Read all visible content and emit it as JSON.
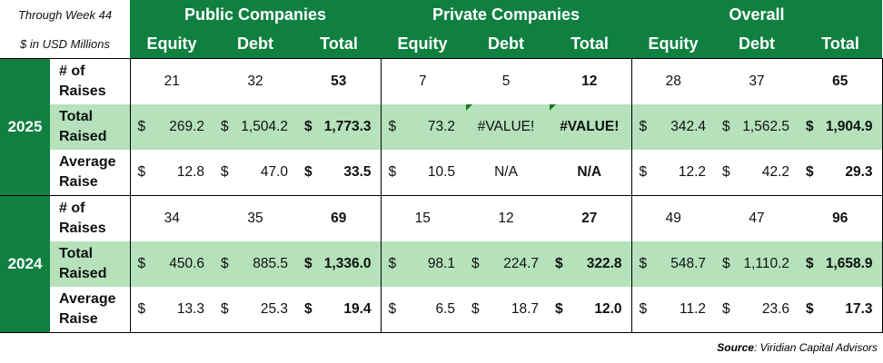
{
  "header": {
    "note1": "Through Week 44",
    "note2": "$ in USD Millions",
    "groups": [
      "Public Companies",
      "Private Companies",
      "Overall"
    ],
    "subcols": [
      "Equity",
      "Debt",
      "Total"
    ]
  },
  "row_labels": [
    [
      "# of",
      "Raises"
    ],
    [
      "Total",
      "Raised"
    ],
    [
      "Average",
      "Raise"
    ]
  ],
  "years": [
    {
      "year": "2025",
      "rows": [
        [
          "21",
          "32",
          "53",
          "7",
          "5",
          "12",
          "28",
          "37",
          "65"
        ],
        [
          "269.2",
          "1,504.2",
          "1,773.3",
          "73.2",
          "#VALUE!",
          "#VALUE!",
          "342.4",
          "1,562.5",
          "1,904.9"
        ],
        [
          "12.8",
          "47.0",
          "33.5",
          "10.5",
          "N/A",
          "N/A",
          "12.2",
          "42.2",
          "29.3"
        ]
      ]
    },
    {
      "year": "2024",
      "rows": [
        [
          "34",
          "35",
          "69",
          "15",
          "12",
          "27",
          "49",
          "47",
          "96"
        ],
        [
          "450.6",
          "885.5",
          "1,336.0",
          "98.1",
          "224.7",
          "322.8",
          "548.7",
          "1,110.2",
          "1,658.9"
        ],
        [
          "13.3",
          "25.3",
          "19.4",
          "6.5",
          "18.7",
          "12.0",
          "11.2",
          "23.6",
          "17.3"
        ]
      ]
    }
  ],
  "currency_symbol": "$",
  "source": {
    "label": "Source",
    "text": ": Viridian Capital Advisors"
  },
  "colors": {
    "green": "#0f8040",
    "light_green": "#b5e2bb"
  }
}
